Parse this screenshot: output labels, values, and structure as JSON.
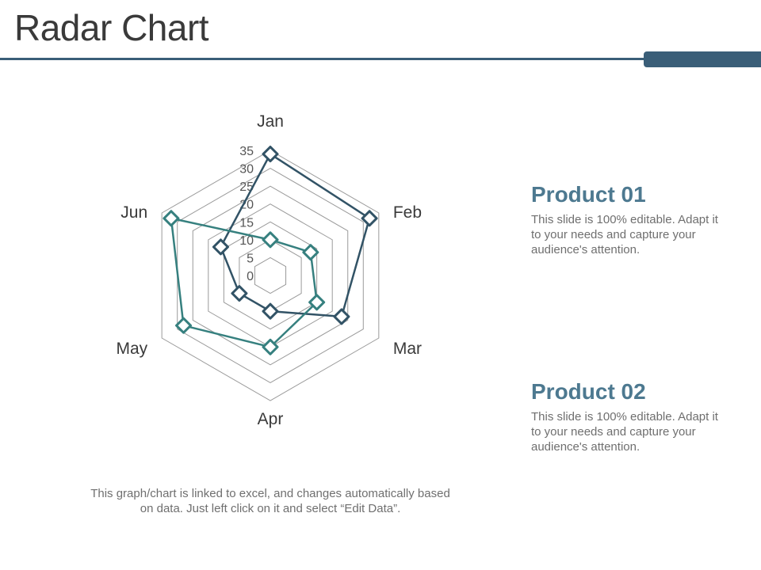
{
  "page": {
    "title": "Radar Chart"
  },
  "colors": {
    "accent": "#3a5e78",
    "heading": "#4d7990",
    "series1": "#325366",
    "series2": "#36807f",
    "grid": "#9a9a9a",
    "text": "#3a3a3a",
    "muted": "#6f6f6f"
  },
  "products": [
    {
      "heading": "Product 01",
      "description": "This slide is 100% editable. Adapt it to your needs and capture your audience's attention."
    },
    {
      "heading": "Product 02",
      "description": "This slide is 100% editable. Adapt it to your needs and capture your audience's attention."
    }
  ],
  "footnote": "This graph/chart is linked to excel, and changes automatically based on data. Just left click on it and select “Edit Data”.",
  "chart_data": {
    "type": "radar",
    "categories": [
      "Jan",
      "Feb",
      "Mar",
      "Apr",
      "May",
      "Jun"
    ],
    "ticks": [
      "0",
      "5",
      "10",
      "15",
      "20",
      "25",
      "30",
      "35"
    ],
    "rlim": [
      0,
      35
    ],
    "grid": true,
    "series": [
      {
        "color_key": "series1",
        "marker": "diamond",
        "values": [
          34,
          32,
          23,
          10,
          10,
          16
        ]
      },
      {
        "color_key": "series2",
        "marker": "diamond",
        "values": [
          10,
          13,
          15,
          20,
          28,
          32
        ]
      }
    ]
  }
}
